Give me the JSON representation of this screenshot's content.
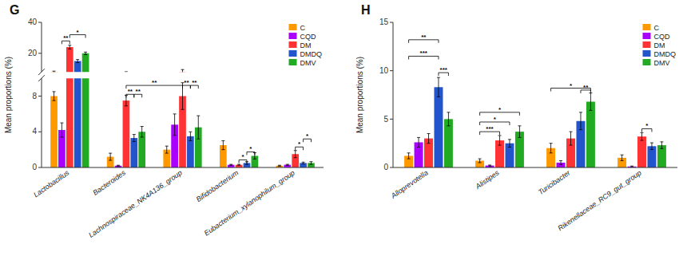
{
  "chart_data": [
    {
      "type": "bar",
      "title": "G",
      "ylabel": "Mean proportions (%)",
      "categories": [
        "Lactobacillus",
        "Bacteroides",
        "Lachnospiraceae_NK4A136_group",
        "Bifidobacterium",
        "Eubacterium_xylanophilum_group"
      ],
      "series": [
        {
          "name": "C",
          "color": "#FF9900",
          "values": [
            8.0,
            1.2,
            2.0,
            2.5,
            0.2
          ],
          "errors": [
            0.5,
            0.4,
            0.4,
            0.5,
            0.05
          ]
        },
        {
          "name": "CQD",
          "color": "#AA00FF",
          "values": [
            4.2,
            0.2,
            4.8,
            0.3,
            0.3
          ],
          "errors": [
            0.8,
            0.05,
            1.2,
            0.05,
            0.05
          ]
        },
        {
          "name": "DM",
          "color": "#FF3333",
          "values": [
            24.0,
            7.5,
            8.0,
            0.3,
            1.5
          ],
          "errors": [
            1.2,
            0.6,
            1.5,
            0.05,
            0.4
          ]
        },
        {
          "name": "DMDQ",
          "color": "#2255CC",
          "values": [
            15.0,
            3.3,
            3.5,
            0.5,
            0.5
          ],
          "errors": [
            1.0,
            0.4,
            0.5,
            0.15,
            0.1
          ]
        },
        {
          "name": "DMV",
          "color": "#22AA22",
          "values": [
            20.0,
            4.0,
            4.5,
            1.3,
            0.5
          ],
          "errors": [
            0.8,
            0.6,
            1.3,
            0.35,
            0.15
          ]
        }
      ],
      "ylim": [
        [
          0,
          10
        ],
        [
          8,
          40
        ]
      ],
      "yticks": [
        [
          0,
          4,
          8
        ],
        [
          20,
          40
        ]
      ],
      "legend": "upper right",
      "grid": false,
      "annotations": [
        {
          "text": "**",
          "y": 28.0,
          "from": [
            0,
            1
          ],
          "to": [
            0,
            2
          ]
        },
        {
          "text": "*",
          "y": 32.0,
          "from": [
            0,
            2
          ],
          "to": [
            0,
            4
          ]
        },
        {
          "text": "**",
          "y": 9.2,
          "from": [
            1,
            2
          ],
          "to": [
            2,
            2
          ]
        },
        {
          "text": "**",
          "y": 8.2,
          "from": [
            1,
            2
          ],
          "to": [
            1,
            3
          ]
        },
        {
          "text": "**",
          "y": 8.2,
          "from": [
            1,
            3
          ],
          "to": [
            1,
            4
          ]
        },
        {
          "text": "**",
          "y": 9.2,
          "from": [
            2,
            2
          ],
          "to": [
            2,
            3
          ]
        },
        {
          "text": "**",
          "y": 9.2,
          "from": [
            2,
            3
          ],
          "to": [
            2,
            4
          ]
        },
        {
          "text": "*",
          "y": 0.85,
          "from": [
            3,
            2
          ],
          "to": [
            3,
            3
          ]
        },
        {
          "text": "*",
          "y": 1.75,
          "from": [
            3,
            3
          ],
          "to": [
            3,
            4
          ]
        },
        {
          "text": "*",
          "y": 2.3,
          "from": [
            4,
            2
          ],
          "to": [
            4,
            3
          ]
        },
        {
          "text": "*",
          "y": 3.2,
          "from": [
            4,
            3
          ],
          "to": [
            4,
            4
          ]
        }
      ]
    },
    {
      "type": "bar",
      "title": "H",
      "ylabel": "Mean proportions (%)",
      "categories": [
        "Alloprevotella",
        "Alistipes",
        "Turicibacter",
        "Rikenellaceae_RC9_gut_group"
      ],
      "series": [
        {
          "name": "C",
          "color": "#FF9900",
          "values": [
            1.2,
            0.7,
            2.0,
            1.0
          ],
          "errors": [
            0.3,
            0.2,
            0.5,
            0.3
          ]
        },
        {
          "name": "CQD",
          "color": "#AA00FF",
          "values": [
            2.6,
            0.2,
            0.5,
            0.1
          ],
          "errors": [
            0.5,
            0.05,
            0.2,
            0.05
          ]
        },
        {
          "name": "DM",
          "color": "#FF3333",
          "values": [
            3.0,
            2.8,
            3.0,
            3.2
          ],
          "errors": [
            0.5,
            0.5,
            0.7,
            0.4
          ]
        },
        {
          "name": "DMDQ",
          "color": "#2255CC",
          "values": [
            8.3,
            2.5,
            4.8,
            2.2
          ],
          "errors": [
            1.0,
            0.4,
            0.9,
            0.35
          ]
        },
        {
          "name": "DMV",
          "color": "#22AA22",
          "values": [
            5.0,
            3.7,
            6.8,
            2.3
          ],
          "errors": [
            0.7,
            0.6,
            0.9,
            0.35
          ]
        }
      ],
      "ylim": [
        0,
        15
      ],
      "yticks": [
        0,
        5,
        10,
        15
      ],
      "legend": "upper right",
      "grid": false,
      "annotations": [
        {
          "text": "***",
          "y": 11.5,
          "from": [
            0,
            0
          ],
          "to": [
            0,
            3
          ]
        },
        {
          "text": "**",
          "y": 13.2,
          "from": [
            0,
            0
          ],
          "to": [
            0,
            3
          ]
        },
        {
          "text": "***",
          "y": 9.8,
          "from": [
            0,
            3
          ],
          "to": [
            0,
            4
          ]
        },
        {
          "text": "***",
          "y": 3.7,
          "from": [
            1,
            0
          ],
          "to": [
            1,
            2
          ]
        },
        {
          "text": "*",
          "y": 4.7,
          "from": [
            1,
            0
          ],
          "to": [
            1,
            3
          ]
        },
        {
          "text": "*",
          "y": 5.7,
          "from": [
            1,
            0
          ],
          "to": [
            1,
            4
          ]
        },
        {
          "text": "*",
          "y": 8.2,
          "from": [
            2,
            0
          ],
          "to": [
            2,
            4
          ]
        },
        {
          "text": "**",
          "y": 8.0,
          "from": [
            2,
            3
          ],
          "to": [
            2,
            4
          ]
        },
        {
          "text": "*",
          "y": 4.0,
          "from": [
            3,
            2
          ],
          "to": [
            3,
            3
          ]
        }
      ]
    }
  ]
}
